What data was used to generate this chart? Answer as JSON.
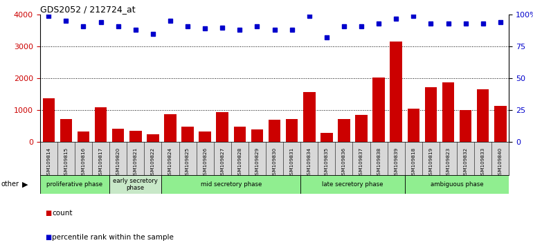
{
  "title": "GDS2052 / 212724_at",
  "samples": [
    "GSM109814",
    "GSM109815",
    "GSM109816",
    "GSM109817",
    "GSM109820",
    "GSM109821",
    "GSM109822",
    "GSM109824",
    "GSM109825",
    "GSM109826",
    "GSM109827",
    "GSM109828",
    "GSM109829",
    "GSM109830",
    "GSM109831",
    "GSM109834",
    "GSM109835",
    "GSM109836",
    "GSM109837",
    "GSM109838",
    "GSM109839",
    "GSM109818",
    "GSM109819",
    "GSM109823",
    "GSM109832",
    "GSM109833",
    "GSM109840"
  ],
  "counts": [
    1380,
    730,
    330,
    1100,
    430,
    360,
    240,
    870,
    490,
    330,
    950,
    480,
    400,
    700,
    720,
    1570,
    300,
    730,
    860,
    2020,
    3150,
    1060,
    1720,
    1870,
    1010,
    1660,
    1140
  ],
  "percentiles": [
    99,
    95,
    91,
    94,
    91,
    88,
    85,
    95,
    91,
    89,
    90,
    88,
    91,
    88,
    88,
    99,
    82,
    91,
    91,
    93,
    97,
    99,
    93,
    93,
    93,
    93,
    94
  ],
  "phases": [
    {
      "label": "proliferative phase",
      "start": 0,
      "end": 4,
      "color": "#90EE90"
    },
    {
      "label": "early secretory\nphase",
      "start": 4,
      "end": 7,
      "color": "#c8e8c8"
    },
    {
      "label": "mid secretory phase",
      "start": 7,
      "end": 15,
      "color": "#90EE90"
    },
    {
      "label": "late secretory phase",
      "start": 15,
      "end": 21,
      "color": "#90EE90"
    },
    {
      "label": "ambiguous phase",
      "start": 21,
      "end": 27,
      "color": "#90EE90"
    }
  ],
  "bar_color": "#cc0000",
  "dot_color": "#0000cc",
  "ylim_left": [
    0,
    4000
  ],
  "ylim_right": [
    0,
    100
  ],
  "yticks_left": [
    0,
    1000,
    2000,
    3000,
    4000
  ],
  "yticks_right": [
    0,
    25,
    50,
    75,
    100
  ],
  "title_color": "#000000",
  "tick_label_color": "#cc0000",
  "right_tick_color": "#0000cc",
  "grid_values": [
    1000,
    2000,
    3000
  ],
  "xticklabel_bg": "#d8d8d8"
}
